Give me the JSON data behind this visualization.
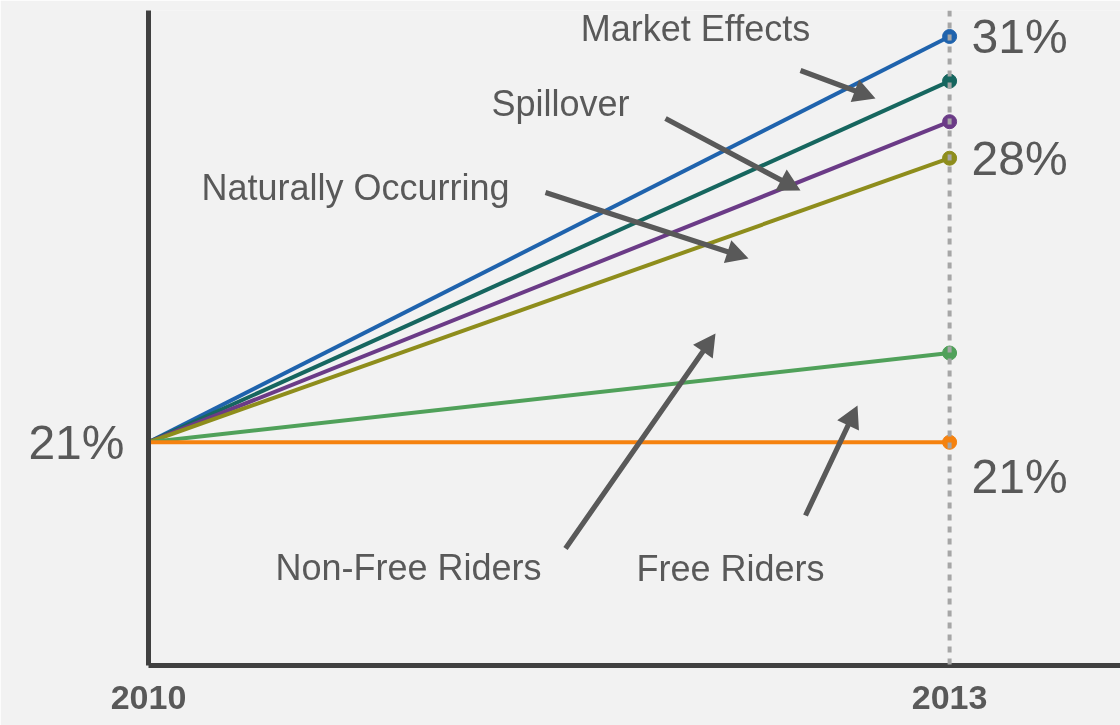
{
  "chart_data": {
    "type": "line",
    "x": [
      2010,
      2013
    ],
    "xlim": [
      2010,
      2013.64
    ],
    "xticks": [
      2010,
      2013
    ],
    "series": [
      {
        "color": "#1f63ad",
        "values": [
          21,
          31
        ],
        "value_labels": [
          null,
          "31%"
        ]
      },
      {
        "color": "#16665f",
        "values": [
          21,
          29.9
        ],
        "value_labels": [
          null,
          null
        ]
      },
      {
        "color": "#6b3b87",
        "values": [
          21,
          28.9
        ],
        "value_labels": [
          null,
          null
        ]
      },
      {
        "color": "#8e8d1c",
        "values": [
          21,
          28
        ],
        "value_labels": [
          null,
          "28%"
        ]
      },
      {
        "color": "#50a15a",
        "values": [
          21,
          23.2
        ],
        "value_labels": [
          null,
          null
        ]
      },
      {
        "color": "#f5820f",
        "values": [
          21,
          21
        ],
        "value_labels": [
          "21%",
          "21%"
        ]
      }
    ],
    "annotations": [
      "Market Effects",
      "Spillover",
      "Naturally Occurring",
      "Non-Free Riders",
      "Free Riders"
    ],
    "ref_lines": [
      {
        "axis": "x",
        "value": 2013,
        "color": "#a6a6a6",
        "line_style": "dashed"
      }
    ],
    "marker": "circle",
    "line_style": "solid",
    "grid": false
  }
}
